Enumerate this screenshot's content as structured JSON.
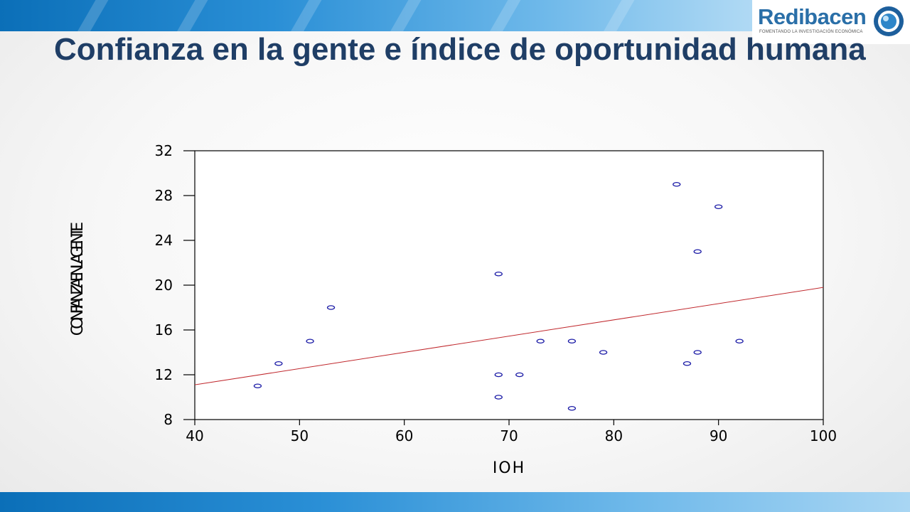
{
  "slide": {
    "title": "Confianza en la gente e índice de oportunidad humana"
  },
  "logo": {
    "name": "Redibacen",
    "tagline": "FOMENTANDO LA INVESTIGACIÓN ECONÓMICA"
  },
  "colors": {
    "title": "#1f3e66",
    "points": "#1a1aa6",
    "trendline": "#c0282d",
    "band": "#2a8fd6"
  },
  "chart_data": {
    "type": "scatter",
    "xlabel": "IOH",
    "ylabel": "CONFIANZAENLAGENTE",
    "xlim": [
      40,
      100
    ],
    "ylim": [
      8,
      32
    ],
    "x_ticks": [
      40,
      50,
      60,
      70,
      80,
      90,
      100
    ],
    "y_ticks": [
      8,
      12,
      16,
      20,
      24,
      28,
      32
    ],
    "grid": false,
    "legend": "none",
    "series": [
      {
        "x": [
          46,
          48,
          51,
          53,
          69,
          69,
          69,
          71,
          73,
          76,
          76,
          79,
          86,
          87,
          88,
          88,
          90,
          92
        ],
        "y": [
          11,
          13,
          15,
          18,
          21,
          12,
          10,
          12,
          15,
          15,
          9,
          14,
          29,
          13,
          23,
          14,
          27,
          15
        ]
      }
    ],
    "trendline": {
      "x": [
        40,
        100
      ],
      "y": [
        11.1,
        19.8
      ]
    }
  }
}
